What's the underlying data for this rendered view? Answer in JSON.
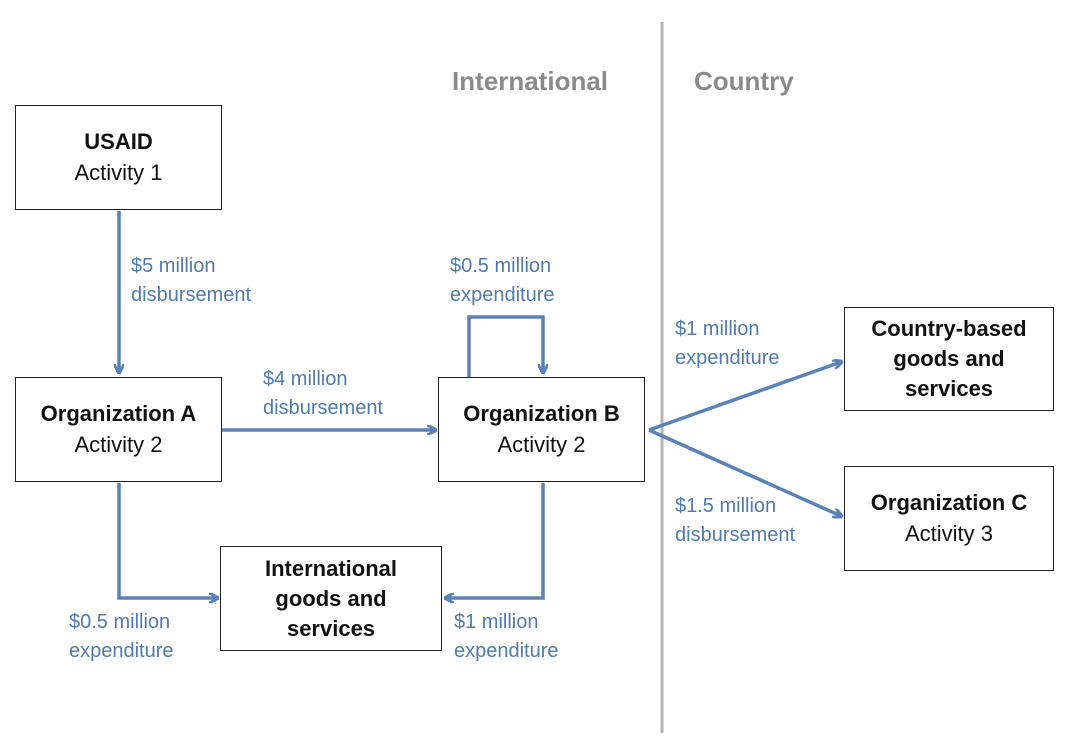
{
  "regions": {
    "left": "International",
    "right": "Country"
  },
  "nodes": {
    "usaid": {
      "title": "USAID",
      "sub": "Activity 1"
    },
    "org_a": {
      "title": "Organization A",
      "sub": "Activity 2"
    },
    "org_b": {
      "title": "Organization B",
      "sub": "Activity 2"
    },
    "intl_goods": {
      "title_lines": [
        "International",
        "goods and",
        "services"
      ]
    },
    "country_goods": {
      "title_lines": [
        "Country-based",
        "goods and",
        "services"
      ]
    },
    "org_c": {
      "title": "Organization C",
      "sub": "Activity 3"
    }
  },
  "edges": {
    "usaid_to_a": [
      "$5 million",
      "disbursement"
    ],
    "a_to_b": [
      "$4 million",
      "disbursement"
    ],
    "b_self": [
      "$0.5 million",
      "expenditure"
    ],
    "a_to_intl": [
      "$0.5 million",
      "expenditure"
    ],
    "b_to_intl": [
      "$1 million",
      "expenditure"
    ],
    "b_to_country": [
      "$1 million",
      "expenditure"
    ],
    "b_to_c": [
      "$1.5 million",
      "disbursement"
    ]
  },
  "colors": {
    "arrow": "#5b82b8",
    "label": "#4f7bb0",
    "divider": "#b3b3b3",
    "region_text": "#8a8a8a"
  }
}
